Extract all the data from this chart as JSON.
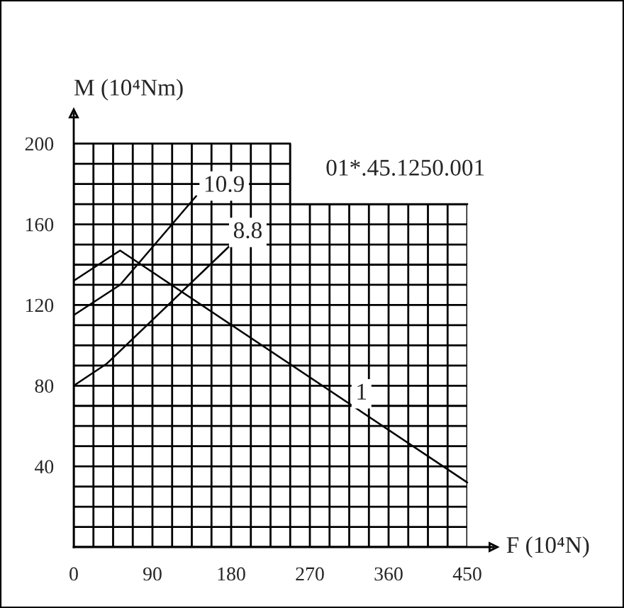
{
  "chart_data": {
    "type": "line",
    "xlabel": "F (10⁴N)",
    "ylabel": "M (10⁴Nm)",
    "xlim": [
      0,
      480
    ],
    "ylim": [
      0,
      215
    ],
    "xticks": [
      0,
      90,
      180,
      270,
      360,
      450
    ],
    "yticks": [
      40,
      80,
      120,
      160,
      200
    ],
    "grid": true,
    "series": [
      {
        "type": "step",
        "color": "#000000",
        "x": [
          0,
          247.5,
          450
        ],
        "values": [
          200,
          170,
          170
        ]
      },
      {
        "color": "#000000",
        "x": [
          0,
          53,
          450
        ],
        "values": [
          132,
          147,
          32
        ]
      },
      {
        "color": "#000000",
        "x": [
          0,
          53,
          140
        ],
        "values": [
          115,
          130,
          174
        ]
      },
      {
        "color": "#000000",
        "x": [
          0,
          38,
          180
        ],
        "values": [
          80,
          91,
          150
        ]
      }
    ],
    "annotations": [
      {
        "text": "10.9",
        "x": 172,
        "y": 179
      },
      {
        "text": "8.8",
        "x": 199,
        "y": 156
      },
      {
        "text": "1",
        "x": 329,
        "y": 76
      },
      "01*.45.1250.001"
    ]
  }
}
